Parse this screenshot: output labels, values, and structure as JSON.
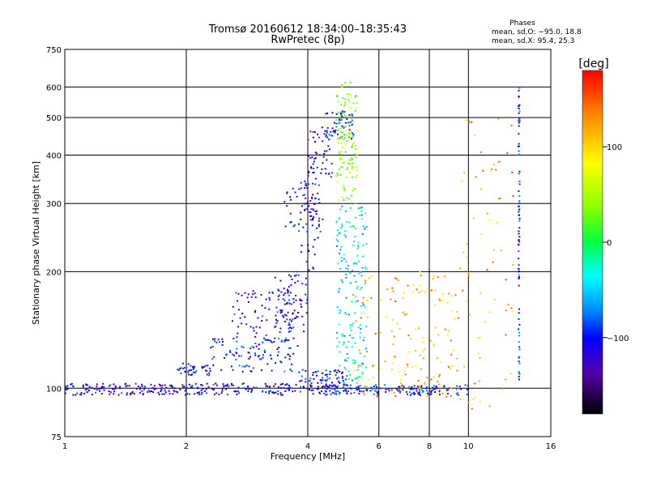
{
  "chart_data": {
    "type": "scatter",
    "title": "Tromsø 20160612 18:34:00–18:35:43",
    "subtitle": "RwPretec (8p)",
    "xlabel": "Frequency [MHz]",
    "ylabel": "Stationary phase Virtual Height [km]",
    "x_scale": "log",
    "y_scale": "log",
    "xlim": [
      1,
      16
    ],
    "ylim": [
      75,
      750
    ],
    "x_ticks": [
      1,
      2,
      4,
      6,
      8,
      10,
      16
    ],
    "x_tick_labels": [
      "1",
      "2",
      "4",
      "6",
      "8",
      "10",
      "16"
    ],
    "y_ticks": [
      75,
      100,
      200,
      300,
      400,
      500,
      600,
      750
    ],
    "y_tick_labels": [
      "75",
      "100",
      "200",
      "300",
      "400",
      "500",
      "600",
      "750"
    ],
    "grid": true,
    "phase_info": {
      "title": "Phases",
      "line_o": "mean, sd,O: −95.0, 18.8",
      "line_x": "mean, sd,X:  95.4, 25.3"
    },
    "colorbar": {
      "label": "[deg]",
      "ticks": [
        100,
        0,
        -100
      ],
      "tick_labels": [
        "100",
        "0",
        "−100"
      ],
      "range": [
        -180,
        180
      ]
    },
    "point_clusters": [
      {
        "x_min": 1.0,
        "x_max": 3.8,
        "y_min": 96,
        "y_max": 103,
        "n": 260,
        "phase": -110
      },
      {
        "x_min": 1.9,
        "x_max": 2.3,
        "y_min": 108,
        "y_max": 116,
        "n": 40,
        "phase": -105
      },
      {
        "x_min": 2.3,
        "x_max": 3.7,
        "y_min": 110,
        "y_max": 135,
        "n": 80,
        "phase": -100
      },
      {
        "x_min": 2.6,
        "x_max": 3.8,
        "y_min": 120,
        "y_max": 180,
        "n": 110,
        "phase": -108
      },
      {
        "x_min": 3.3,
        "x_max": 4.0,
        "y_min": 140,
        "y_max": 200,
        "n": 70,
        "phase": -110
      },
      {
        "x_min": 3.8,
        "x_max": 4.4,
        "y_min": 200,
        "y_max": 340,
        "n": 55,
        "phase": -112
      },
      {
        "x_min": 3.5,
        "x_max": 4.2,
        "y_min": 260,
        "y_max": 350,
        "n": 40,
        "phase": -110
      },
      {
        "x_min": 4.0,
        "x_max": 4.6,
        "y_min": 350,
        "y_max": 480,
        "n": 50,
        "phase": -115
      },
      {
        "x_min": 4.4,
        "x_max": 5.2,
        "y_min": 440,
        "y_max": 520,
        "n": 60,
        "phase": -100
      },
      {
        "x_min": 4.7,
        "x_max": 5.3,
        "y_min": 300,
        "y_max": 620,
        "n": 130,
        "phase": 60
      },
      {
        "x_min": 4.7,
        "x_max": 5.6,
        "y_min": 100,
        "y_max": 300,
        "n": 180,
        "phase": -40
      },
      {
        "x_min": 3.8,
        "x_max": 5.0,
        "y_min": 98,
        "y_max": 112,
        "n": 90,
        "phase": -105
      },
      {
        "x_min": 4.0,
        "x_max": 10.0,
        "y_min": 96,
        "y_max": 102,
        "n": 160,
        "phase": -100
      },
      {
        "x_min": 5.2,
        "x_max": 9.5,
        "y_min": 95,
        "y_max": 200,
        "n": 160,
        "phase": 120
      },
      {
        "x_min": 9.5,
        "x_max": 13.0,
        "y_min": 78,
        "y_max": 500,
        "n": 70,
        "phase": 130
      },
      {
        "x_min": 13.3,
        "x_max": 13.4,
        "y_min": 100,
        "y_max": 600,
        "n": 80,
        "phase": -95
      }
    ]
  }
}
